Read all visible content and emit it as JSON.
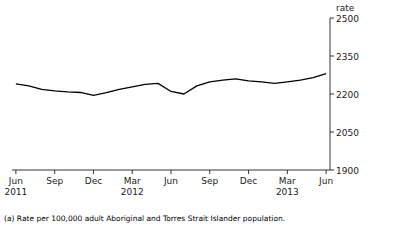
{
  "chart_data": {
    "type": "line",
    "ylabel": "rate",
    "annotations": [
      "(a) Rate per 100,000 adult Aboriginal and Torres Strait Islander population."
    ],
    "categories": [
      "Jun\n2011",
      null,
      null,
      "Sep",
      null,
      null,
      "Dec",
      null,
      null,
      "Mar\n2012",
      null,
      null,
      "Jun",
      null,
      null,
      "Sep",
      null,
      null,
      "Dec",
      null,
      null,
      "Mar\n2013",
      null,
      null,
      "Jun"
    ],
    "values": [
      2240,
      2232,
      2218,
      2212,
      2208,
      2206,
      2195,
      2205,
      2218,
      2228,
      2238,
      2242,
      2210,
      2200,
      2232,
      2248,
      2255,
      2260,
      2252,
      2248,
      2242,
      2248,
      2255,
      2265,
      2280
    ],
    "color": "#000000",
    "ylim": [
      1900,
      2500
    ],
    "yticks": [
      1900,
      2050,
      2200,
      2350,
      2500
    ],
    "grid": false
  }
}
